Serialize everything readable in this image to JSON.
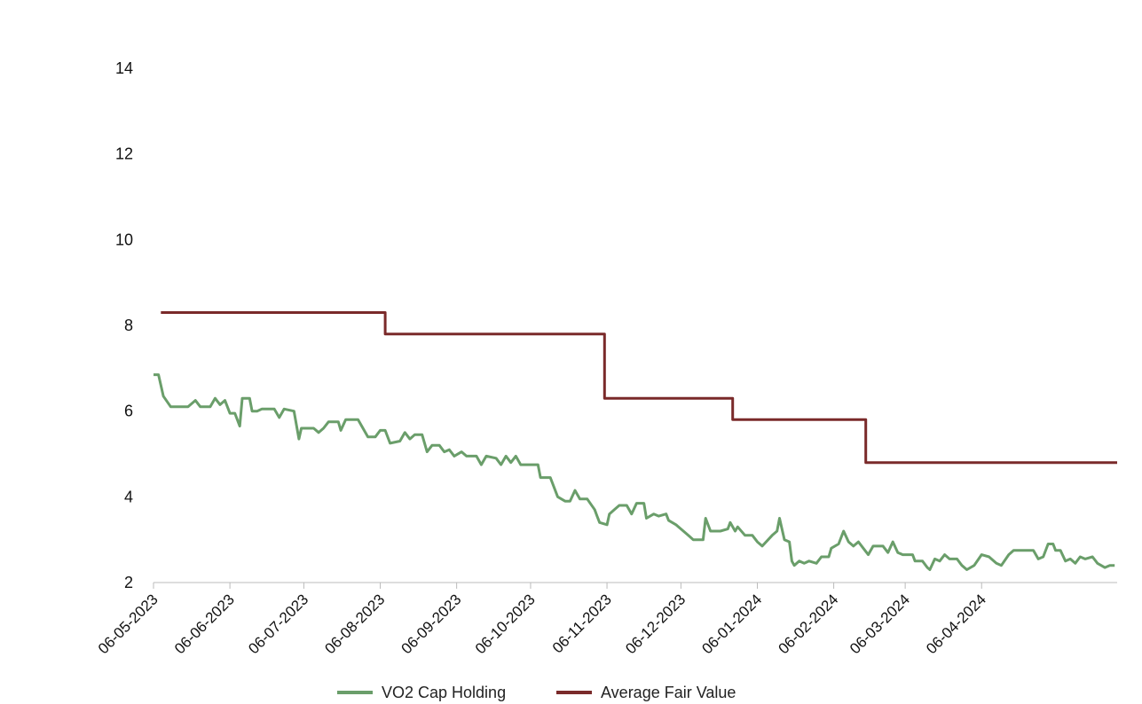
{
  "chart_data": {
    "type": "line",
    "title": "",
    "xlabel": "",
    "ylabel": "",
    "ylim": [
      2,
      15
    ],
    "y_ticks": [
      "2",
      "4",
      "6",
      "8",
      "10",
      "12",
      "14"
    ],
    "x_ticks": [
      "06-05-2023",
      "06-06-2023",
      "06-07-2023",
      "06-08-2023",
      "06-09-2023",
      "06-10-2023",
      "06-11-2023",
      "06-12-2023",
      "06-01-2024",
      "06-02-2024",
      "06-03-2024",
      "06-04-2024"
    ],
    "grid": false,
    "legend_position": "bottom-center",
    "series": [
      {
        "name": "VO2 Cap Holding",
        "color": "#6a9e6a",
        "points": [
          [
            "2023-05-06",
            6.85
          ],
          [
            "2023-05-08",
            6.85
          ],
          [
            "2023-05-10",
            6.35
          ],
          [
            "2023-05-13",
            6.1
          ],
          [
            "2023-05-20",
            6.1
          ],
          [
            "2023-05-23",
            6.25
          ],
          [
            "2023-05-25",
            6.1
          ],
          [
            "2023-05-29",
            6.1
          ],
          [
            "2023-05-31",
            6.3
          ],
          [
            "2023-06-02",
            6.15
          ],
          [
            "2023-06-04",
            6.25
          ],
          [
            "2023-06-06",
            5.95
          ],
          [
            "2023-06-08",
            5.95
          ],
          [
            "2023-06-10",
            5.65
          ],
          [
            "2023-06-11",
            6.3
          ],
          [
            "2023-06-14",
            6.3
          ],
          [
            "2023-06-15",
            6.0
          ],
          [
            "2023-06-17",
            6.0
          ],
          [
            "2023-06-19",
            6.05
          ],
          [
            "2023-06-24",
            6.05
          ],
          [
            "2023-06-26",
            5.85
          ],
          [
            "2023-06-28",
            6.05
          ],
          [
            "2023-07-02",
            6.0
          ],
          [
            "2023-07-04",
            5.35
          ],
          [
            "2023-07-05",
            5.6
          ],
          [
            "2023-07-10",
            5.6
          ],
          [
            "2023-07-12",
            5.5
          ],
          [
            "2023-07-14",
            5.6
          ],
          [
            "2023-07-16",
            5.75
          ],
          [
            "2023-07-20",
            5.75
          ],
          [
            "2023-07-21",
            5.55
          ],
          [
            "2023-07-23",
            5.8
          ],
          [
            "2023-07-28",
            5.8
          ],
          [
            "2023-08-01",
            5.4
          ],
          [
            "2023-08-04",
            5.4
          ],
          [
            "2023-08-06",
            5.55
          ],
          [
            "2023-08-08",
            5.55
          ],
          [
            "2023-08-10",
            5.25
          ],
          [
            "2023-08-14",
            5.3
          ],
          [
            "2023-08-16",
            5.5
          ],
          [
            "2023-08-18",
            5.35
          ],
          [
            "2023-08-20",
            5.45
          ],
          [
            "2023-08-23",
            5.45
          ],
          [
            "2023-08-25",
            5.05
          ],
          [
            "2023-08-27",
            5.2
          ],
          [
            "2023-08-30",
            5.2
          ],
          [
            "2023-09-01",
            5.05
          ],
          [
            "2023-09-03",
            5.1
          ],
          [
            "2023-09-05",
            4.95
          ],
          [
            "2023-09-08",
            5.05
          ],
          [
            "2023-09-10",
            4.95
          ],
          [
            "2023-09-14",
            4.95
          ],
          [
            "2023-09-16",
            4.75
          ],
          [
            "2023-09-18",
            4.95
          ],
          [
            "2023-09-22",
            4.9
          ],
          [
            "2023-09-24",
            4.75
          ],
          [
            "2023-09-26",
            4.95
          ],
          [
            "2023-09-28",
            4.8
          ],
          [
            "2023-09-30",
            4.95
          ],
          [
            "2023-10-02",
            4.75
          ],
          [
            "2023-10-09",
            4.75
          ],
          [
            "2023-10-10",
            4.45
          ],
          [
            "2023-10-14",
            4.45
          ],
          [
            "2023-10-17",
            4.0
          ],
          [
            "2023-10-20",
            3.9
          ],
          [
            "2023-10-22",
            3.9
          ],
          [
            "2023-10-24",
            4.15
          ],
          [
            "2023-10-26",
            3.95
          ],
          [
            "2023-10-29",
            3.95
          ],
          [
            "2023-11-01",
            3.7
          ],
          [
            "2023-11-02",
            3.55
          ],
          [
            "2023-11-03",
            3.4
          ],
          [
            "2023-11-06",
            3.35
          ],
          [
            "2023-11-07",
            3.6
          ],
          [
            "2023-11-09",
            3.7
          ],
          [
            "2023-11-11",
            3.8
          ],
          [
            "2023-11-14",
            3.8
          ],
          [
            "2023-11-16",
            3.6
          ],
          [
            "2023-11-18",
            3.85
          ],
          [
            "2023-11-21",
            3.85
          ],
          [
            "2023-11-22",
            3.5
          ],
          [
            "2023-11-25",
            3.6
          ],
          [
            "2023-11-27",
            3.55
          ],
          [
            "2023-11-30",
            3.6
          ],
          [
            "2023-12-01",
            3.45
          ],
          [
            "2023-12-04",
            3.35
          ],
          [
            "2023-12-06",
            3.25
          ],
          [
            "2023-12-09",
            3.1
          ],
          [
            "2023-12-11",
            3.0
          ],
          [
            "2023-12-15",
            3.0
          ],
          [
            "2023-12-16",
            3.5
          ],
          [
            "2023-12-18",
            3.2
          ],
          [
            "2023-12-22",
            3.2
          ],
          [
            "2023-12-25",
            3.25
          ],
          [
            "2023-12-26",
            3.4
          ],
          [
            "2023-12-28",
            3.2
          ],
          [
            "2023-12-29",
            3.3
          ],
          [
            "2024-01-01",
            3.1
          ],
          [
            "2024-01-04",
            3.1
          ],
          [
            "2024-01-06",
            2.95
          ],
          [
            "2024-01-08",
            2.85
          ],
          [
            "2024-01-12",
            3.1
          ],
          [
            "2024-01-14",
            3.2
          ],
          [
            "2024-01-15",
            3.5
          ],
          [
            "2024-01-17",
            3.0
          ],
          [
            "2024-01-19",
            2.95
          ],
          [
            "2024-01-20",
            2.5
          ],
          [
            "2024-01-21",
            2.4
          ],
          [
            "2024-01-23",
            2.5
          ],
          [
            "2024-01-25",
            2.45
          ],
          [
            "2024-01-27",
            2.5
          ],
          [
            "2024-01-30",
            2.45
          ],
          [
            "2024-02-01",
            2.6
          ],
          [
            "2024-02-04",
            2.6
          ],
          [
            "2024-02-05",
            2.8
          ],
          [
            "2024-02-08",
            2.9
          ],
          [
            "2024-02-10",
            3.2
          ],
          [
            "2024-02-12",
            2.95
          ],
          [
            "2024-02-14",
            2.85
          ],
          [
            "2024-02-16",
            2.95
          ],
          [
            "2024-02-18",
            2.8
          ],
          [
            "2024-02-20",
            2.65
          ],
          [
            "2024-02-22",
            2.85
          ],
          [
            "2024-02-26",
            2.85
          ],
          [
            "2024-02-28",
            2.7
          ],
          [
            "2024-03-01",
            2.95
          ],
          [
            "2024-03-03",
            2.7
          ],
          [
            "2024-03-05",
            2.65
          ],
          [
            "2024-03-09",
            2.65
          ],
          [
            "2024-03-10",
            2.5
          ],
          [
            "2024-03-13",
            2.5
          ],
          [
            "2024-03-15",
            2.35
          ],
          [
            "2024-03-16",
            2.3
          ],
          [
            "2024-03-18",
            2.55
          ],
          [
            "2024-03-20",
            2.5
          ],
          [
            "2024-03-22",
            2.65
          ],
          [
            "2024-03-24",
            2.55
          ],
          [
            "2024-03-27",
            2.55
          ],
          [
            "2024-03-29",
            2.4
          ],
          [
            "2024-03-31",
            2.3
          ],
          [
            "2024-04-03",
            2.4
          ],
          [
            "2024-04-06",
            2.65
          ],
          [
            "2024-04-09",
            2.6
          ],
          [
            "2024-04-12",
            2.45
          ],
          [
            "2024-04-14",
            2.4
          ],
          [
            "2024-04-17",
            2.65
          ],
          [
            "2024-04-19",
            2.75
          ],
          [
            "2024-04-24",
            2.75
          ],
          [
            "2024-04-27",
            2.75
          ],
          [
            "2024-04-29",
            2.55
          ],
          [
            "2024-05-01",
            2.6
          ],
          [
            "2024-05-03",
            2.9
          ],
          [
            "2024-05-05",
            2.9
          ],
          [
            "2024-05-06",
            2.75
          ],
          [
            "2024-05-08",
            2.75
          ],
          [
            "2024-05-10",
            2.5
          ],
          [
            "2024-05-12",
            2.55
          ],
          [
            "2024-05-14",
            2.45
          ],
          [
            "2024-05-16",
            2.6
          ],
          [
            "2024-05-18",
            2.55
          ],
          [
            "2024-05-21",
            2.6
          ],
          [
            "2024-05-23",
            2.45
          ],
          [
            "2024-05-26",
            2.35
          ],
          [
            "2024-05-28",
            2.4
          ],
          [
            "2024-05-30",
            2.4
          ]
        ]
      },
      {
        "name": "Average Fair Value",
        "color": "#7a2a2a",
        "points": [
          [
            "2023-05-09",
            8.3
          ],
          [
            "2023-08-08",
            8.3
          ],
          [
            "2023-08-08",
            7.8
          ],
          [
            "2023-11-05",
            7.8
          ],
          [
            "2023-11-05",
            6.3
          ],
          [
            "2023-12-27",
            6.3
          ],
          [
            "2023-12-27",
            5.8
          ],
          [
            "2024-02-19",
            5.8
          ],
          [
            "2024-02-19",
            4.8
          ],
          [
            "2024-05-31",
            4.8
          ]
        ]
      }
    ]
  }
}
